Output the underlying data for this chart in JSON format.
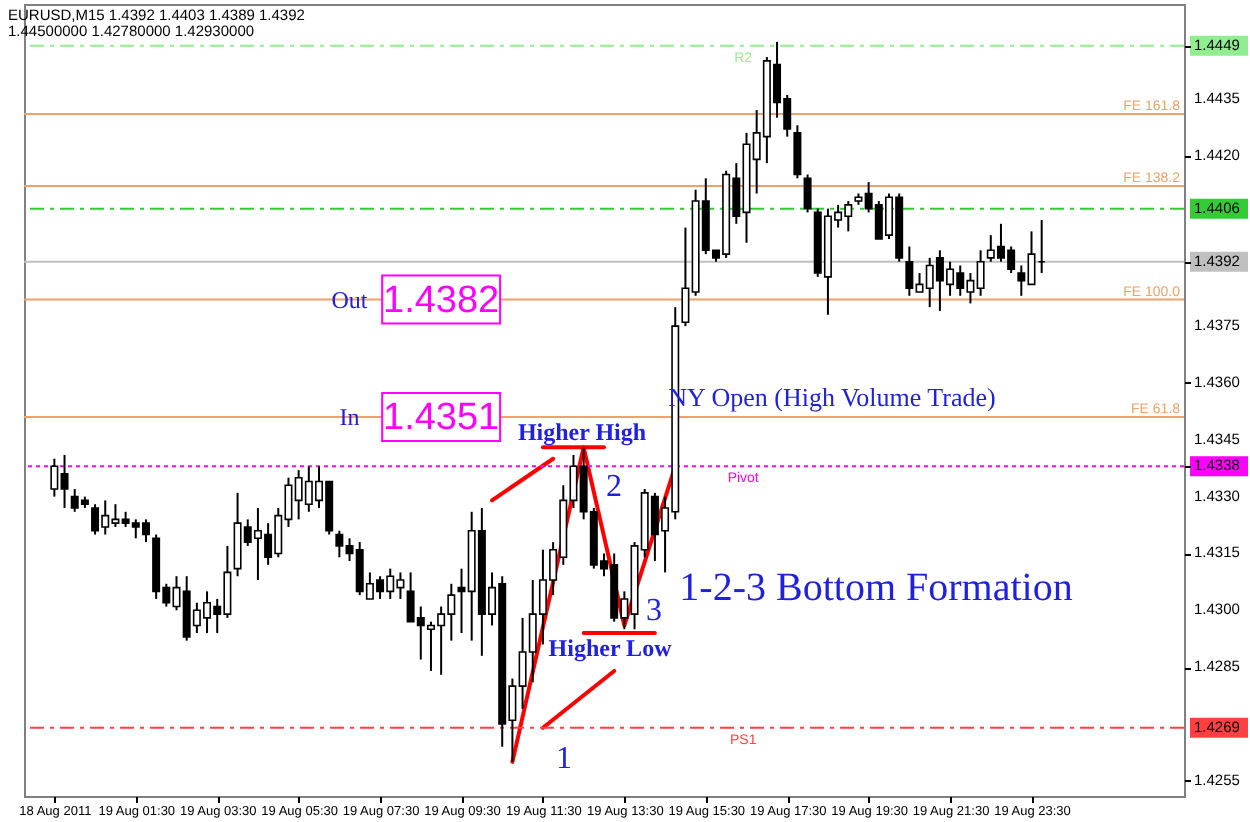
{
  "chart_data": {
    "type": "candlestick",
    "color": "#000000",
    "x": [
      "2011-08-18T23:30",
      "2011-08-18T23:45",
      "2011-08-19T00:00",
      "2011-08-19T00:15",
      "2011-08-19T00:30",
      "2011-08-19T00:45",
      "2011-08-19T01:00",
      "2011-08-19T01:15",
      "2011-08-19T01:30",
      "2011-08-19T01:45",
      "2011-08-19T02:00",
      "2011-08-19T02:15",
      "2011-08-19T02:30",
      "2011-08-19T02:45",
      "2011-08-19T03:00",
      "2011-08-19T03:15",
      "2011-08-19T03:30",
      "2011-08-19T03:45",
      "2011-08-19T04:00",
      "2011-08-19T04:15",
      "2011-08-19T04:30",
      "2011-08-19T04:45",
      "2011-08-19T05:00",
      "2011-08-19T05:15",
      "2011-08-19T05:30",
      "2011-08-19T05:45",
      "2011-08-19T06:00",
      "2011-08-19T06:15",
      "2011-08-19T06:30",
      "2011-08-19T06:45",
      "2011-08-19T07:00",
      "2011-08-19T07:15",
      "2011-08-19T07:30",
      "2011-08-19T07:45",
      "2011-08-19T08:00",
      "2011-08-19T08:15",
      "2011-08-19T08:30",
      "2011-08-19T08:45",
      "2011-08-19T09:00",
      "2011-08-19T09:15",
      "2011-08-19T09:30",
      "2011-08-19T09:45",
      "2011-08-19T10:00",
      "2011-08-19T10:15",
      "2011-08-19T10:30",
      "2011-08-19T10:45",
      "2011-08-19T11:00",
      "2011-08-19T11:15",
      "2011-08-19T11:30",
      "2011-08-19T11:45",
      "2011-08-19T12:00",
      "2011-08-19T12:15",
      "2011-08-19T12:30",
      "2011-08-19T12:45",
      "2011-08-19T13:00",
      "2011-08-19T13:15",
      "2011-08-19T13:30",
      "2011-08-19T13:45",
      "2011-08-19T14:00",
      "2011-08-19T14:15",
      "2011-08-19T14:30",
      "2011-08-19T14:45",
      "2011-08-19T15:00",
      "2011-08-19T15:15",
      "2011-08-19T15:30",
      "2011-08-19T15:45",
      "2011-08-19T16:00",
      "2011-08-19T16:15",
      "2011-08-19T16:30",
      "2011-08-19T16:45",
      "2011-08-19T17:00",
      "2011-08-19T17:15",
      "2011-08-19T17:30",
      "2011-08-19T17:45",
      "2011-08-19T18:00",
      "2011-08-19T18:15",
      "2011-08-19T18:30",
      "2011-08-19T18:45",
      "2011-08-19T19:00",
      "2011-08-19T19:15",
      "2011-08-19T19:30",
      "2011-08-19T19:45",
      "2011-08-19T20:00",
      "2011-08-19T20:15",
      "2011-08-19T20:30",
      "2011-08-19T20:45",
      "2011-08-19T21:00",
      "2011-08-19T21:15",
      "2011-08-19T21:30",
      "2011-08-19T21:45",
      "2011-08-19T22:00",
      "2011-08-19T22:15",
      "2011-08-19T22:30",
      "2011-08-19T22:45",
      "2011-08-19T23:00",
      "2011-08-19T23:15",
      "2011-08-19T23:30",
      "2011-08-19T23:45"
    ],
    "ohlc": [
      [
        1.4332,
        1.434,
        1.433,
        1.4338
      ],
      [
        1.4336,
        1.4341,
        1.4327,
        1.4332
      ],
      [
        1.433,
        1.4332,
        1.4326,
        1.4327
      ],
      [
        1.4329,
        1.433,
        1.4327,
        1.4328
      ],
      [
        1.4327,
        1.4328,
        1.432,
        1.4321
      ],
      [
        1.4322,
        1.4329,
        1.432,
        1.4325
      ],
      [
        1.4323,
        1.4328,
        1.4322,
        1.4324
      ],
      [
        1.4324,
        1.4326,
        1.4322,
        1.4323
      ],
      [
        1.4323,
        1.4324,
        1.4319,
        1.4322
      ],
      [
        1.4323,
        1.4324,
        1.4318,
        1.432
      ],
      [
        1.4319,
        1.432,
        1.4303,
        1.4305
      ],
      [
        1.4306,
        1.4307,
        1.4301,
        1.4302
      ],
      [
        1.4301,
        1.4309,
        1.43,
        1.4306
      ],
      [
        1.4305,
        1.4309,
        1.4292,
        1.4293
      ],
      [
        1.4296,
        1.4302,
        1.4294,
        1.43
      ],
      [
        1.4298,
        1.4305,
        1.4294,
        1.4302
      ],
      [
        1.4301,
        1.4303,
        1.4294,
        1.4299
      ],
      [
        1.4299,
        1.4317,
        1.4298,
        1.431
      ],
      [
        1.4311,
        1.4331,
        1.4309,
        1.4323
      ],
      [
        1.4322,
        1.4324,
        1.4317,
        1.4318
      ],
      [
        1.4319,
        1.4327,
        1.4308,
        1.4321
      ],
      [
        1.432,
        1.4323,
        1.4312,
        1.4314
      ],
      [
        1.4315,
        1.4327,
        1.4314,
        1.4325
      ],
      [
        1.4324,
        1.4335,
        1.4322,
        1.4333
      ],
      [
        1.4329,
        1.4337,
        1.4324,
        1.4335
      ],
      [
        1.4328,
        1.4338,
        1.4326,
        1.4334
      ],
      [
        1.4329,
        1.4338,
        1.4327,
        1.4334
      ],
      [
        1.4334,
        1.4334,
        1.432,
        1.4321
      ],
      [
        1.432,
        1.4321,
        1.4314,
        1.4317
      ],
      [
        1.4317,
        1.4319,
        1.4313,
        1.4315
      ],
      [
        1.4316,
        1.4318,
        1.4304,
        1.4305
      ],
      [
        1.4303,
        1.431,
        1.4303,
        1.4307
      ],
      [
        1.4308,
        1.4309,
        1.4303,
        1.4305
      ],
      [
        1.4305,
        1.4311,
        1.4303,
        1.4309
      ],
      [
        1.4306,
        1.431,
        1.4303,
        1.4308
      ],
      [
        1.4305,
        1.431,
        1.4297,
        1.4297
      ],
      [
        1.4298,
        1.4301,
        1.4287,
        1.4296
      ],
      [
        1.4295,
        1.4297,
        1.4284,
        1.4296
      ],
      [
        1.4296,
        1.4301,
        1.4283,
        1.4299
      ],
      [
        1.4299,
        1.4307,
        1.4292,
        1.4304
      ],
      [
        1.4306,
        1.4311,
        1.4294,
        1.4305
      ],
      [
        1.4305,
        1.4326,
        1.4292,
        1.4321
      ],
      [
        1.4321,
        1.4327,
        1.4288,
        1.4299
      ],
      [
        1.4299,
        1.431,
        1.4296,
        1.4306
      ],
      [
        1.4307,
        1.4309,
        1.4264,
        1.427
      ],
      [
        1.4271,
        1.4282,
        1.426,
        1.428
      ],
      [
        1.428,
        1.4298,
        1.4274,
        1.4289
      ],
      [
        1.4289,
        1.4308,
        1.4281,
        1.4299
      ],
      [
        1.4299,
        1.4316,
        1.4291,
        1.4308
      ],
      [
        1.4308,
        1.4318,
        1.4304,
        1.4316
      ],
      [
        1.4314,
        1.4333,
        1.4312,
        1.4329
      ],
      [
        1.4329,
        1.4341,
        1.4327,
        1.4338
      ],
      [
        1.4338,
        1.4343,
        1.4324,
        1.4326
      ],
      [
        1.4326,
        1.4327,
        1.4311,
        1.4312
      ],
      [
        1.4313,
        1.4315,
        1.4309,
        1.4311
      ],
      [
        1.4312,
        1.4315,
        1.4297,
        1.4298
      ],
      [
        1.4298,
        1.4305,
        1.4295,
        1.4303
      ],
      [
        1.4299,
        1.4318,
        1.4295,
        1.4317
      ],
      [
        1.4316,
        1.4332,
        1.4314,
        1.4331
      ],
      [
        1.433,
        1.4331,
        1.4313,
        1.432
      ],
      [
        1.4321,
        1.433,
        1.431,
        1.4327
      ],
      [
        1.4326,
        1.438,
        1.4324,
        1.4375
      ],
      [
        1.4376,
        1.4401,
        1.4375,
        1.4385
      ],
      [
        1.4384,
        1.4411,
        1.4383,
        1.4408
      ],
      [
        1.4408,
        1.4414,
        1.4394,
        1.4395
      ],
      [
        1.4395,
        1.4395,
        1.4392,
        1.4393
      ],
      [
        1.4394,
        1.4416,
        1.4393,
        1.4415
      ],
      [
        1.4414,
        1.4418,
        1.4402,
        1.4404
      ],
      [
        1.4405,
        1.4426,
        1.4397,
        1.4423
      ],
      [
        1.4419,
        1.4432,
        1.441,
        1.4426
      ],
      [
        1.4425,
        1.4446,
        1.4418,
        1.4445
      ],
      [
        1.4444,
        1.445,
        1.443,
        1.4434
      ],
      [
        1.4435,
        1.4436,
        1.4425,
        1.4427
      ],
      [
        1.4426,
        1.4428,
        1.4414,
        1.4415
      ],
      [
        1.4414,
        1.4415,
        1.4405,
        1.4406
      ],
      [
        1.4405,
        1.4406,
        1.4388,
        1.4389
      ],
      [
        1.4388,
        1.4406,
        1.4378,
        1.4404
      ],
      [
        1.4403,
        1.4407,
        1.4401,
        1.4405
      ],
      [
        1.4404,
        1.4408,
        1.44,
        1.4407
      ],
      [
        1.4408,
        1.441,
        1.4407,
        1.4409
      ],
      [
        1.441,
        1.4413,
        1.4405,
        1.4406
      ],
      [
        1.4407,
        1.4408,
        1.4398,
        1.4398
      ],
      [
        1.4399,
        1.441,
        1.4398,
        1.4409
      ],
      [
        1.4409,
        1.441,
        1.4392,
        1.4393
      ],
      [
        1.4392,
        1.4396,
        1.4383,
        1.4385
      ],
      [
        1.4384,
        1.4389,
        1.4384,
        1.4386
      ],
      [
        1.4385,
        1.4393,
        1.438,
        1.4391
      ],
      [
        1.4393,
        1.4395,
        1.4379,
        1.4387
      ],
      [
        1.4386,
        1.4392,
        1.4383,
        1.439
      ],
      [
        1.4389,
        1.4391,
        1.4383,
        1.4385
      ],
      [
        1.4384,
        1.4389,
        1.4381,
        1.4387
      ],
      [
        1.4385,
        1.4395,
        1.4383,
        1.4392
      ],
      [
        1.4393,
        1.4399,
        1.4392,
        1.4395
      ],
      [
        1.4396,
        1.4402,
        1.4392,
        1.4393
      ],
      [
        1.4395,
        1.4396,
        1.4389,
        1.439
      ],
      [
        1.4389,
        1.4391,
        1.4383,
        1.4387
      ],
      [
        1.4386,
        1.44,
        1.4386,
        1.4394
      ],
      [
        1.4392,
        1.4403,
        1.4389,
        1.4392
      ]
    ],
    "series": [
      {
        "type": "line",
        "color": "#ff0000",
        "x": [
          "2011-08-19T10:45",
          "2011-08-19T12:30",
          "2011-08-19T13:30",
          "2011-08-19T14:45"
        ],
        "values": [
          1.426,
          1.4343,
          1.4296,
          1.4338
        ]
      },
      {
        "type": "line",
        "color": "#ff0000",
        "x": [
          "2011-08-19T10:15",
          "2011-08-19T11:45"
        ],
        "values": [
          1.4329,
          1.434
        ]
      },
      {
        "type": "line",
        "color": "#ff0000",
        "x": [
          "2011-08-19T11:30",
          "2011-08-19T13:15"
        ],
        "values": [
          1.4269,
          1.4284
        ]
      },
      {
        "type": "line",
        "color": "#ff0000",
        "x": [
          "2011-08-19T11:30",
          "2011-08-19T13:00"
        ],
        "values": [
          1.4343,
          1.4343
        ]
      },
      {
        "type": "line",
        "color": "#ff0000",
        "x": [
          "2011-08-19T12:30",
          "2011-08-19T14:15"
        ],
        "values": [
          1.4294,
          1.4294
        ]
      }
    ],
    "xlim": [
      "2011-08-18T23:00",
      "2011-08-20T03:00"
    ],
    "xticks": [
      {
        "value": "2011-08-18T23:30",
        "label": "18 Aug 2011"
      },
      {
        "value": "2011-08-19T01:30",
        "label": "19 Aug 01:30"
      },
      {
        "value": "2011-08-19T03:30",
        "label": "19 Aug 03:30"
      },
      {
        "value": "2011-08-19T05:30",
        "label": "19 Aug 05:30"
      },
      {
        "value": "2011-08-19T07:30",
        "label": "19 Aug 07:30"
      },
      {
        "value": "2011-08-19T09:30",
        "label": "19 Aug 09:30"
      },
      {
        "value": "2011-08-19T11:30",
        "label": "19 Aug 11:30"
      },
      {
        "value": "2011-08-19T13:30",
        "label": "19 Aug 13:30"
      },
      {
        "value": "2011-08-19T15:30",
        "label": "19 Aug 15:30"
      },
      {
        "value": "2011-08-19T17:30",
        "label": "19 Aug 17:30"
      },
      {
        "value": "2011-08-19T19:30",
        "label": "19 Aug 19:30"
      },
      {
        "value": "2011-08-19T21:30",
        "label": "19 Aug 21:30"
      },
      {
        "value": "2011-08-19T23:30",
        "label": "19 Aug 23:30"
      }
    ],
    "ylim": [
      1.4251,
      1.446
    ],
    "yticks": [
      {
        "value": 1.4449,
        "label": "1.4449"
      },
      {
        "value": 1.4406,
        "label": "1.4406"
      },
      {
        "value": 1.4392,
        "label": "1.4392"
      },
      {
        "value": 1.4338,
        "label": "1.4338"
      },
      {
        "value": 1.4269,
        "label": "1.4269"
      },
      1.4435,
      {
        "value": 1.442,
        "label": "1.4420"
      },
      1.4375,
      {
        "value": 1.436,
        "label": "1.4360"
      },
      1.4345,
      {
        "value": 1.433,
        "label": "1.4330"
      },
      1.4315,
      {
        "value": 1.43,
        "label": "1.4300"
      },
      1.4285,
      1.4255
    ],
    "ref_lines": [
      {
        "axis": "y",
        "value": 1.4449,
        "label": "R2",
        "color": "#90ee90",
        "line_style": "dashed"
      },
      {
        "axis": "y",
        "value": 1.4431,
        "label": "FE 161.8",
        "color": "#f0a068",
        "line_style": "solid"
      },
      {
        "axis": "y",
        "value": 1.4412,
        "label": "FE 138.2",
        "color": "#f0a068",
        "line_style": "solid"
      },
      {
        "axis": "y",
        "value": 1.4406,
        "label": null,
        "color": "#32cd32",
        "line_style": "dashed"
      },
      {
        "axis": "y",
        "value": 1.4392,
        "label": null,
        "color": "#c0c0c0",
        "line_style": "solid"
      },
      {
        "axis": "y",
        "value": 1.4382,
        "label": "FE 100.0",
        "color": "#f0a068",
        "line_style": "solid"
      },
      {
        "axis": "y",
        "value": 1.4351,
        "label": "FE 61.8",
        "color": "#f0a068",
        "line_style": "solid"
      },
      {
        "axis": "y",
        "value": 1.4338,
        "label": "Pivot",
        "color": "#ff00ff",
        "line_style": "dotted"
      },
      {
        "axis": "y",
        "value": 1.4269,
        "label": "PS1",
        "color": "#ff4040",
        "line_style": "dashed"
      }
    ],
    "annotations": [
      "EURUSD,M15  1.4392 1.4403 1.4389 1.4392",
      "1.44500000 1.42780000 1.42930000",
      {
        "text": "Out",
        "x": "2011-08-19T06:45",
        "y": 1.4382
      },
      {
        "text": "1.4382",
        "x": "2011-08-19T09:00",
        "y": 1.4382
      },
      {
        "text": "In",
        "x": "2011-08-19T06:45",
        "y": 1.4351
      },
      {
        "text": "1.4351",
        "x": "2011-08-19T09:00",
        "y": 1.4351
      },
      "Higher High",
      "2",
      "3",
      "Higher Low",
      "1",
      "NY Open (High Volume Trade)",
      "1-2-3 Bottom Formation"
    ]
  }
}
